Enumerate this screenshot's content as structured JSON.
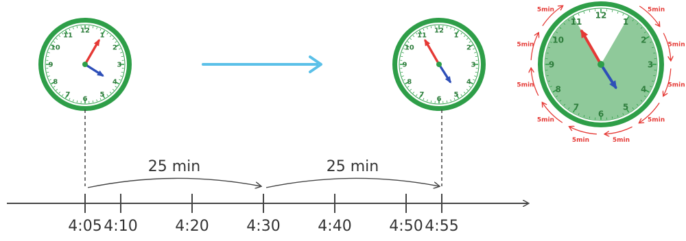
{
  "clocks": [
    {
      "label": "clock-start",
      "hour": 4,
      "minute": 5,
      "numbers": [
        "12",
        "1",
        "2",
        "3",
        "4",
        "5",
        "6",
        "7",
        "8",
        "9",
        "10",
        "11"
      ]
    },
    {
      "label": "clock-end",
      "hour": 4,
      "minute": 55,
      "numbers": [
        "12",
        "1",
        "2",
        "3",
        "4",
        "5",
        "6",
        "7",
        "8",
        "9",
        "10",
        "11"
      ]
    },
    {
      "label": "clock-detail",
      "hour": 4,
      "minute": 55,
      "numbers": [
        "12",
        "1",
        "2",
        "3",
        "4",
        "5",
        "6",
        "7",
        "8",
        "9",
        "10",
        "11"
      ],
      "interval_label": "5min",
      "interval_count": 10
    }
  ],
  "timeline": {
    "ticks": [
      {
        "label": "4:05",
        "minutes": 5
      },
      {
        "label": "4:10",
        "minutes": 10
      },
      {
        "label": "4:20",
        "minutes": 20
      },
      {
        "label": "4:30",
        "minutes": 30
      },
      {
        "label": "4:40",
        "minutes": 40
      },
      {
        "label": "4:50",
        "minutes": 50
      },
      {
        "label": "4:55",
        "minutes": 55
      }
    ],
    "jumps": [
      {
        "label": "25 min",
        "from": 5,
        "to": 30
      },
      {
        "label": "25 min",
        "from": 30,
        "to": 55
      }
    ]
  },
  "colors": {
    "clock_rim": "#2e9e48",
    "clock_face": "#ffffff",
    "clock_face_shaded": "#8fc99a",
    "hour_hand": "#2e4fb8",
    "minute_hand": "#e53935",
    "arrow": "#5bc0e8",
    "interval": "#e53935",
    "line": "#444444"
  }
}
